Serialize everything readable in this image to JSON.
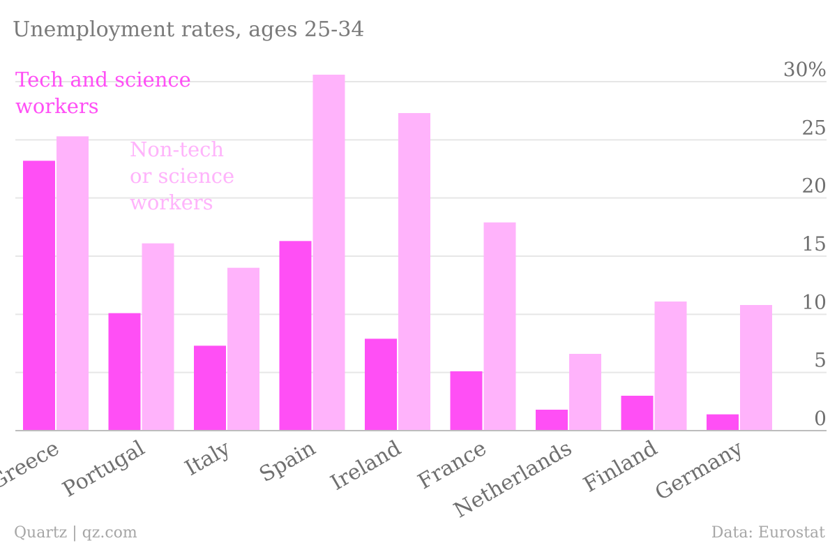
{
  "chart_data": {
    "type": "bar",
    "title": "Unemployment rates, ages 25-34",
    "categories": [
      "Greece",
      "Portugal",
      "Italy",
      "Spain",
      "Ireland",
      "France",
      "Netherlands",
      "Finland",
      "Germany"
    ],
    "series": [
      {
        "name": "Tech and science workers",
        "color": "#ff4ff5",
        "values": [
          23.2,
          10.1,
          7.3,
          16.3,
          7.9,
          5.1,
          1.8,
          3.0,
          1.4
        ]
      },
      {
        "name": "Non-tech or science workers",
        "color": "#ffb3fb",
        "values": [
          25.3,
          16.1,
          14.0,
          30.6,
          27.3,
          17.9,
          6.6,
          11.1,
          10.8
        ]
      }
    ],
    "ylim": [
      0,
      30
    ],
    "yticks": [
      0,
      5,
      10,
      15,
      20,
      25,
      30
    ],
    "ytick_labels": [
      "0",
      "5",
      "10",
      "15",
      "20",
      "25",
      "30%"
    ],
    "legend": {
      "placement": "top-left",
      "series_0_lines": [
        "Tech and science",
        "workers"
      ],
      "series_1_lines": [
        "Non-tech",
        "or science",
        "workers"
      ]
    },
    "grid": true
  },
  "footer": {
    "source_left": "Quartz | qz.com",
    "source_right": "Data: Eurostat"
  }
}
